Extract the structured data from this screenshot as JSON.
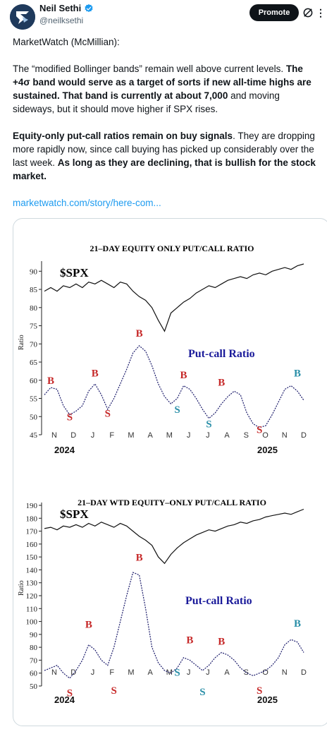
{
  "tweet": {
    "author_name": "Neil Sethi",
    "handle": "@neilksethi",
    "promote_label": "Promote",
    "intro": "MarketWatch (McMillian):",
    "p1": [
      {
        "t": "The “modified Bollinger bands” remain well above current levels. ",
        "b": false
      },
      {
        "t": "The +4σ band would serve as a target of sorts if new all-time highs are sustained. That band is currently at about 7,000",
        "b": true
      },
      {
        "t": " and moving sideways, but it should move higher if SPX rises.",
        "b": false
      }
    ],
    "p2": [
      {
        "t": "Equity-only put-call ratios remain on buy signals",
        "b": true
      },
      {
        "t": ". They are dropping more rapidly now, since call buying has picked up considerably over the last week. ",
        "b": false
      },
      {
        "t": "As long as they are declining, that is bullish for the stock market.",
        "b": true
      }
    ],
    "link": "marketwatch.com/story/here-com...",
    "colors": {
      "link": "#1d9bf0",
      "buy_signal": "#c62828",
      "sell_signal_red": "#c62828",
      "sell_signal_teal": "#2a8fa8",
      "pcr_label": "#1a1a9a"
    }
  },
  "chart_data": [
    {
      "type": "line",
      "title": "21–DAY EQUITY ONLY PUT/CALL RATIO",
      "spx_label": "$SPX",
      "ratio_label": "Put-call Ratio",
      "ylabel": "Ratio",
      "yticks": [
        45,
        50,
        55,
        60,
        65,
        70,
        75,
        80,
        85,
        90
      ],
      "ylim": [
        45,
        92
      ],
      "months": [
        "N",
        "D",
        "J",
        "F",
        "M",
        "A",
        "M",
        "J",
        "J",
        "A",
        "S",
        "O",
        "N",
        "D"
      ],
      "years": [
        "2024",
        "2025"
      ],
      "series": [
        {
          "name": "$SPX",
          "values": [
            84.5,
            85.5,
            84.5,
            86,
            85.5,
            86.5,
            85.5,
            87,
            86.5,
            87.5,
            86.5,
            85.5,
            87,
            86.5,
            84.5,
            83,
            82,
            80,
            76.5,
            73.5,
            78.5,
            80,
            81.5,
            82.5,
            84,
            85,
            86,
            85.5,
            86.5,
            87.5,
            88,
            88.5,
            88,
            89,
            89.5,
            89,
            90,
            90.5,
            91,
            90.5,
            91.5,
            92
          ]
        },
        {
          "name": "Put-call Ratio",
          "values": [
            56,
            58,
            57.5,
            53,
            50.5,
            51.5,
            53,
            57,
            59,
            56,
            52,
            55,
            59,
            63,
            67.5,
            69.5,
            68,
            64,
            59,
            55.5,
            53.5,
            55,
            58.5,
            57.5,
            55,
            52,
            49.5,
            51,
            53.5,
            55.5,
            57,
            56,
            51,
            48,
            47,
            47.5,
            50.5,
            54,
            57.5,
            58.5,
            57,
            54.5
          ]
        }
      ],
      "signals": [
        {
          "label": "B",
          "color": "red",
          "i": 1,
          "v": 59
        },
        {
          "label": "S",
          "color": "red",
          "i": 4,
          "v": 49
        },
        {
          "label": "B",
          "color": "red",
          "i": 8,
          "v": 61
        },
        {
          "label": "S",
          "color": "red",
          "i": 10,
          "v": 50
        },
        {
          "label": "B",
          "color": "red",
          "i": 15,
          "v": 72
        },
        {
          "label": "B",
          "color": "red",
          "i": 22,
          "v": 60.5
        },
        {
          "label": "S",
          "color": "teal",
          "i": 21,
          "v": 51
        },
        {
          "label": "S",
          "color": "teal",
          "i": 26,
          "v": 47
        },
        {
          "label": "B",
          "color": "red",
          "i": 28,
          "v": 58.5
        },
        {
          "label": "S",
          "color": "red",
          "i": 34,
          "v": 45.5
        },
        {
          "label": "B",
          "color": "teal",
          "i": 40,
          "v": 61
        }
      ]
    },
    {
      "type": "line",
      "title": "21–DAY WTD EQUITY–ONLY PUT/CALL RATIO",
      "spx_label": "$SPX",
      "ratio_label": "Put-call Ratio",
      "ylabel": "Ratio",
      "yticks": [
        50,
        60,
        70,
        80,
        90,
        100,
        110,
        120,
        130,
        140,
        150,
        160,
        170,
        180,
        190
      ],
      "ylim": [
        50,
        190
      ],
      "months": [
        "N",
        "D",
        "J",
        "F",
        "M",
        "A",
        "M",
        "J",
        "J",
        "A",
        "S",
        "O",
        "N",
        "D"
      ],
      "years": [
        "2024",
        "2025"
      ],
      "series": [
        {
          "name": "$SPX",
          "values": [
            172,
            173,
            171,
            174,
            173,
            175,
            173,
            176,
            174,
            177,
            175,
            173,
            176,
            174,
            170,
            166,
            163,
            159,
            150,
            145,
            152,
            157,
            161,
            164,
            167,
            169,
            171,
            170,
            172,
            174,
            175,
            177,
            176,
            178,
            179,
            181,
            182,
            183,
            184,
            183,
            185,
            187
          ]
        },
        {
          "name": "Put-call Ratio",
          "values": [
            62,
            64,
            66,
            60,
            56,
            62,
            70,
            82,
            78,
            70,
            66,
            80,
            100,
            120,
            138,
            136,
            110,
            80,
            68,
            62,
            60,
            64,
            72,
            70,
            66,
            62,
            66,
            72,
            76,
            74,
            70,
            64,
            60,
            58,
            60,
            62,
            66,
            72,
            82,
            86,
            84,
            76
          ]
        }
      ],
      "signals": [
        {
          "label": "B",
          "color": "red",
          "i": 7,
          "v": 95
        },
        {
          "label": "S",
          "color": "red",
          "i": 4,
          "v": 42
        },
        {
          "label": "S",
          "color": "red",
          "i": 11,
          "v": 44
        },
        {
          "label": "B",
          "color": "red",
          "i": 15,
          "v": 147
        },
        {
          "label": "S",
          "color": "teal",
          "i": 21,
          "v": 58
        },
        {
          "label": "B",
          "color": "red",
          "i": 23,
          "v": 83
        },
        {
          "label": "S",
          "color": "teal",
          "i": 25,
          "v": 43
        },
        {
          "label": "B",
          "color": "red",
          "i": 28,
          "v": 82
        },
        {
          "label": "S",
          "color": "red",
          "i": 34,
          "v": 44
        },
        {
          "label": "B",
          "color": "teal",
          "i": 40,
          "v": 96
        }
      ]
    }
  ]
}
